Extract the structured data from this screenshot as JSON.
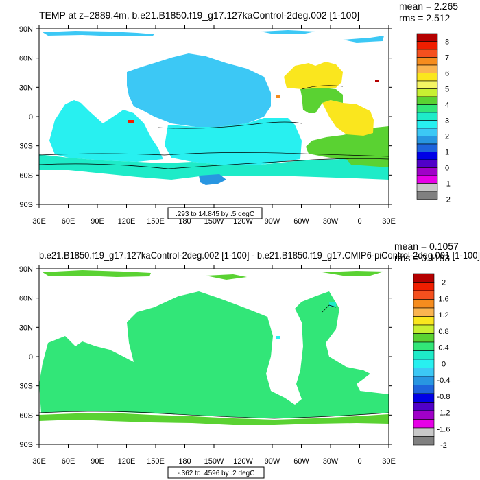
{
  "chart_data": [
    {
      "type": "map",
      "title": "TEMP at z=2889.4m, b.e21.B1850.f19_g17.127kaControl-2deg.002 [1-100]",
      "stats": {
        "mean": "mean = 2.265",
        "rms": "rms = 2.512"
      },
      "contour_info": ".293 to 14.845 by .5 degC",
      "lat_ticks": [
        "90N",
        "60N",
        "30N",
        "0",
        "30S",
        "60S",
        "90S"
      ],
      "lon_ticks": [
        "30E",
        "60E",
        "90E",
        "120E",
        "150E",
        "180",
        "150W",
        "120W",
        "90W",
        "60W",
        "30W",
        "0",
        "30E"
      ],
      "colorbar": {
        "labels": [
          "8",
          "7",
          "6",
          "5",
          "4",
          "3",
          "2",
          "1",
          "0",
          "-1",
          "-2"
        ],
        "colors": [
          "#b40000",
          "#f01e00",
          "#f5501e",
          "#f58c1e",
          "#fab450",
          "#fae61e",
          "#f5f564",
          "#c8f032",
          "#5ad232",
          "#32e678",
          "#1eebc8",
          "#28f0f0",
          "#3cc8f5",
          "#2896e1",
          "#1e64dc",
          "#0000e6",
          "#5000c8",
          "#a000c8",
          "#e600e6",
          "#c8c8c8",
          "#808080"
        ]
      }
    },
    {
      "type": "map",
      "title": "b.e21.B1850.f19_g17.127kaControl-2deg.002 [1-100] - b.e21.B1850.f19_g17.CMIP6-piControl-2deg.001 [1-100]",
      "stats": {
        "mean": "mean = 0.1057",
        "rms": "rms = 0.1183"
      },
      "contour_info": "-.362 to .4596 by .2 degC",
      "lat_ticks": [
        "90N",
        "60N",
        "30N",
        "0",
        "30S",
        "60S",
        "90S"
      ],
      "lon_ticks": [
        "30E",
        "60E",
        "90E",
        "120E",
        "150E",
        "180",
        "150W",
        "120W",
        "90W",
        "60W",
        "30W",
        "0",
        "30E"
      ],
      "colorbar": {
        "labels": [
          "2",
          "1.6",
          "1.2",
          "0.8",
          "0.4",
          "0",
          "-0.4",
          "-0.8",
          "-1.2",
          "-1.6",
          "-2"
        ],
        "colors": [
          "#b40000",
          "#f01e00",
          "#f5501e",
          "#f58c1e",
          "#fab450",
          "#fae61e",
          "#c8f032",
          "#5ad232",
          "#32e678",
          "#1eebc8",
          "#28f0f0",
          "#3cc8f5",
          "#2896e1",
          "#1e64dc",
          "#0000e6",
          "#5000c8",
          "#a000c8",
          "#e600e6",
          "#c8c8c8",
          "#808080"
        ]
      }
    }
  ]
}
